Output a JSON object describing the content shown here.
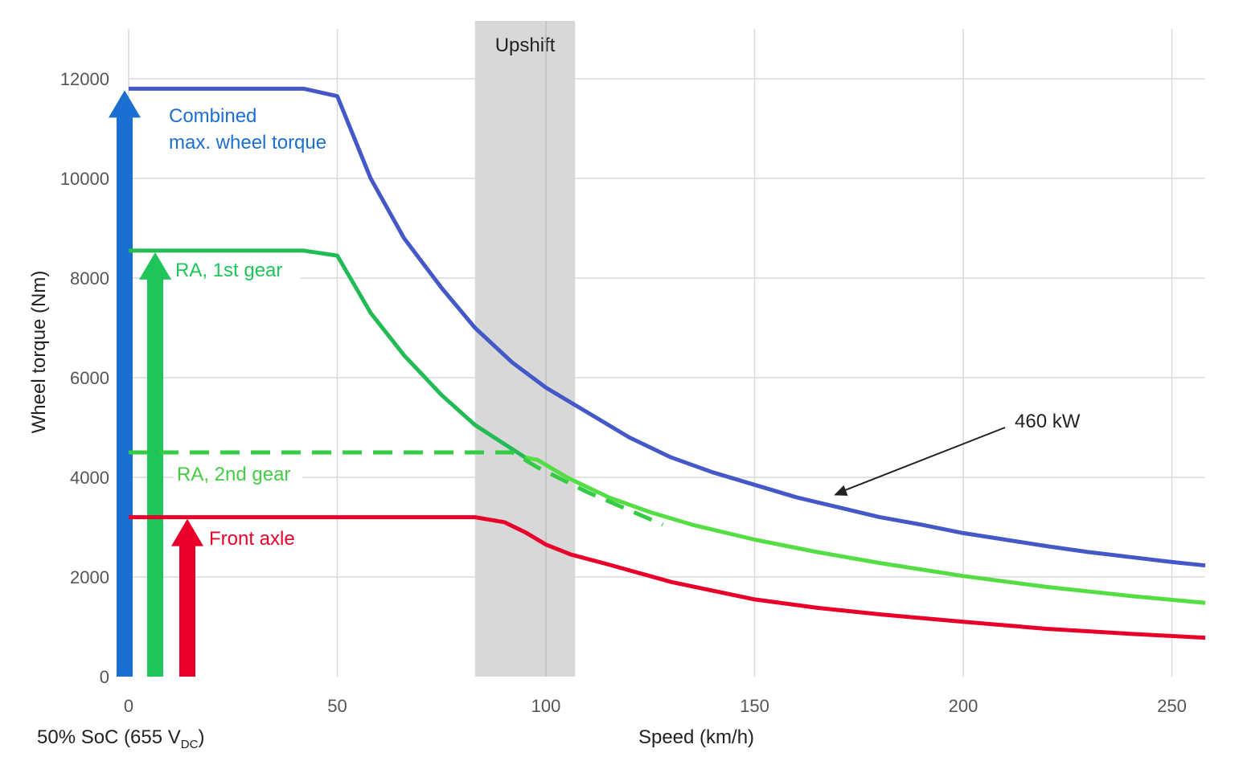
{
  "chart_data": {
    "type": "line",
    "xlabel": "Speed (km/h)",
    "ylabel": "Wheel torque (Nm)",
    "xlim": [
      0,
      260
    ],
    "ylim": [
      0,
      12000
    ],
    "x_ticks": [
      0,
      50,
      100,
      150,
      200,
      250
    ],
    "y_ticks": [
      0,
      2000,
      4000,
      6000,
      8000,
      10000,
      12000
    ],
    "grid": true,
    "footnote": {
      "prefix": "50% SoC (655 V",
      "subscript": "DC",
      "suffix": ")"
    },
    "upshift_band": {
      "label": "Upshift",
      "x_range": [
        83,
        107
      ]
    },
    "power_annotation": {
      "label": "460 kW",
      "points_to": [
        169,
        3640
      ]
    },
    "series": [
      {
        "name": "Combined max. wheel torque",
        "label_lines": [
          "Combined",
          "max. wheel torque"
        ],
        "color": "#4458c8",
        "style": "solid",
        "points": [
          [
            0,
            11800
          ],
          [
            42,
            11800
          ],
          [
            50,
            11650
          ],
          [
            58,
            10000
          ],
          [
            66,
            8800
          ],
          [
            75,
            7800
          ],
          [
            83,
            7000
          ],
          [
            92,
            6300
          ],
          [
            100,
            5800
          ],
          [
            110,
            5300
          ],
          [
            120,
            4800
          ],
          [
            130,
            4400
          ],
          [
            140,
            4100
          ],
          [
            150,
            3850
          ],
          [
            160,
            3600
          ],
          [
            170,
            3400
          ],
          [
            180,
            3200
          ],
          [
            190,
            3050
          ],
          [
            200,
            2880
          ],
          [
            210,
            2750
          ],
          [
            220,
            2620
          ],
          [
            230,
            2500
          ],
          [
            240,
            2400
          ],
          [
            250,
            2300
          ],
          [
            258,
            2230
          ]
        ]
      },
      {
        "name": "RA, 1st gear",
        "label_lines": [
          "RA, 1st gear"
        ],
        "color": "#22bb55",
        "style": "solid",
        "points": [
          [
            0,
            8550
          ],
          [
            42,
            8550
          ],
          [
            50,
            8450
          ],
          [
            58,
            7300
          ],
          [
            66,
            6450
          ],
          [
            75,
            5650
          ],
          [
            83,
            5050
          ],
          [
            95,
            4400
          ]
        ]
      },
      {
        "name": "RA, 2nd gear",
        "label_lines": [
          "RA, 2nd gear"
        ],
        "color": "#55dd44",
        "style": "solid",
        "points": [
          [
            95,
            4400
          ],
          [
            98,
            4350
          ],
          [
            105,
            4000
          ],
          [
            115,
            3600
          ],
          [
            125,
            3300
          ],
          [
            135,
            3050
          ],
          [
            150,
            2750
          ],
          [
            165,
            2500
          ],
          [
            180,
            2280
          ],
          [
            200,
            2020
          ],
          [
            220,
            1800
          ],
          [
            240,
            1620
          ],
          [
            258,
            1480
          ]
        ]
      },
      {
        "name": "RA, 2nd gear (dashed)",
        "label_lines": [],
        "color": "#33cc44",
        "style": "dashed",
        "points": [
          [
            0,
            4500
          ],
          [
            92,
            4500
          ],
          [
            98,
            4200
          ],
          [
            110,
            3700
          ],
          [
            128,
            3050
          ]
        ]
      },
      {
        "name": "Front axle",
        "label_lines": [
          "Front axle"
        ],
        "color": "#e8002a",
        "style": "solid",
        "points": [
          [
            0,
            3200
          ],
          [
            83,
            3200
          ],
          [
            90,
            3100
          ],
          [
            95,
            2900
          ],
          [
            100,
            2650
          ],
          [
            106,
            2450
          ],
          [
            115,
            2250
          ],
          [
            130,
            1900
          ],
          [
            150,
            1550
          ],
          [
            165,
            1380
          ],
          [
            180,
            1250
          ],
          [
            200,
            1100
          ],
          [
            220,
            960
          ],
          [
            240,
            860
          ],
          [
            258,
            780
          ]
        ]
      }
    ],
    "arrows": [
      {
        "series": "Combined max. wheel torque",
        "x": 0,
        "to_value": 11800,
        "color": "#1a6fd0"
      },
      {
        "series": "RA, 1st gear",
        "x": 6,
        "to_value": 8550,
        "color": "#1fc45a"
      },
      {
        "series": "Front axle",
        "x": 14,
        "to_value": 3200,
        "color": "#e8002a"
      }
    ]
  }
}
